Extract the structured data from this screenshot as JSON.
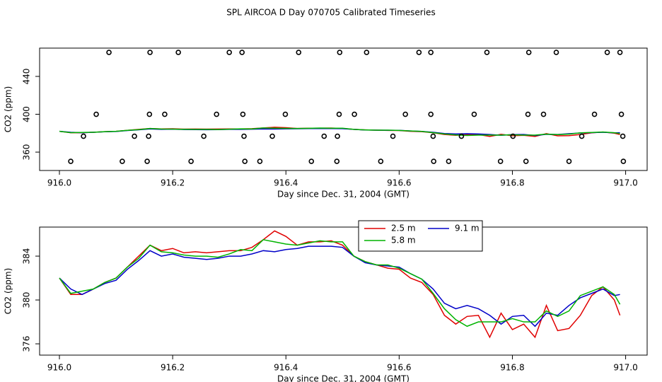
{
  "chart_data": [
    {
      "type": "line",
      "title": "SPL AIRCOA D  Day 070705  Calibrated Timeseries",
      "x_label": "Day since Dec. 31, 2004 (GMT)",
      "y_label": "CO2 (ppm)",
      "xlim": [
        915.965,
        917.038
      ],
      "ylim": [
        340.6,
        469.9
      ],
      "xticks": [
        {
          "value": 916,
          "label": "916.0"
        },
        916.2,
        916.4,
        916.6,
        916.8,
        {
          "value": 917,
          "label": "917.0"
        }
      ],
      "yticks": [
        360,
        400,
        440
      ],
      "x": [
        916,
        916.02,
        916.04,
        916.06,
        916.08,
        916.1,
        916.12,
        916.14,
        916.16,
        916.18,
        916.2,
        916.22,
        916.24,
        916.26,
        916.28,
        916.3,
        916.32,
        916.34,
        916.36,
        916.38,
        916.4,
        916.42,
        916.44,
        916.46,
        916.48,
        916.5,
        916.52,
        916.54,
        916.56,
        916.58,
        916.6,
        916.62,
        916.64,
        916.66,
        916.68,
        916.7,
        916.72,
        916.74,
        916.76,
        916.78,
        916.8,
        916.82,
        916.84,
        916.86,
        916.88,
        916.9,
        916.92,
        916.94,
        916.96,
        916.98,
        916.99
      ],
      "series": [
        {
          "color": "#e00000",
          "values": [
            382,
            380.5,
            380.5,
            381,
            381.6,
            382,
            383,
            384,
            385,
            384.5,
            384.7,
            384.3,
            384.4,
            384.3,
            384.4,
            384.5,
            384.5,
            384.8,
            385.5,
            386.3,
            385.8,
            385,
            385.3,
            385.3,
            385.4,
            385,
            384,
            383.5,
            383.2,
            382.9,
            382.8,
            382,
            381.6,
            380.5,
            378.6,
            377.8,
            378.5,
            378.6,
            376.6,
            378.8,
            377.3,
            377.8,
            376.6,
            379.5,
            377.2,
            377.4,
            378.6,
            380.4,
            381.2,
            380,
            378.6
          ]
        },
        {
          "color": "#0000c8",
          "values": [
            382,
            381,
            380.5,
            381,
            381.5,
            381.8,
            382.8,
            383.6,
            384.5,
            384,
            384.2,
            383.9,
            383.8,
            383.7,
            383.8,
            384,
            384,
            384.2,
            384.5,
            384.4,
            384.6,
            384.7,
            384.9,
            384.9,
            384.9,
            384.8,
            384,
            383.4,
            383.2,
            383.1,
            383,
            382.4,
            381.9,
            381,
            379.7,
            379.2,
            379.5,
            379.2,
            378.6,
            377.8,
            378.5,
            378.6,
            377.6,
            378.8,
            378.6,
            379.5,
            380.2,
            380.6,
            381,
            380.4,
            380.5
          ]
        },
        {
          "color": "#00b400",
          "values": [
            382,
            380.6,
            380.8,
            381,
            381.6,
            382,
            383,
            383.8,
            385,
            384.4,
            384.3,
            384.1,
            384,
            384,
            383.9,
            384.2,
            384.6,
            384.5,
            385.5,
            385.3,
            385.1,
            385,
            385.2,
            385.4,
            385.3,
            385.3,
            384,
            383.5,
            383.2,
            383.2,
            382.9,
            382.4,
            381.9,
            380.6,
            379.2,
            378.2,
            377.6,
            378,
            378,
            378,
            378.3,
            378,
            378,
            379,
            378.5,
            379,
            380.4,
            380.8,
            381.2,
            380.5,
            379.6
          ]
        },
        {
          "type": "scatter",
          "color": "#000000",
          "x": [
            916.0875,
            916.16,
            916.21,
            916.3,
            916.3225,
            916.4225,
            916.495,
            916.5425,
            916.635,
            916.656,
            916.755,
            916.829,
            916.8775,
            916.9675,
            916.99,
            916.065,
            916.159,
            916.186,
            916.2775,
            916.324,
            916.399,
            916.494,
            916.521,
            916.611,
            916.656,
            916.7325,
            916.8275,
            916.855,
            916.945,
            916.9925,
            916.0425,
            916.1325,
            916.1575,
            916.255,
            916.326,
            916.376,
            916.4675,
            916.491,
            916.589,
            916.66,
            916.71,
            916.801,
            916.9225,
            916.995,
            916.02,
            916.111,
            916.155,
            916.2325,
            916.3275,
            916.354,
            916.445,
            916.49,
            916.5675,
            916.661,
            916.6875,
            916.779,
            916.824,
            916.9,
            916.996
          ],
          "values": [
            465.4,
            465.4,
            465.4,
            465.4,
            465.4,
            465.4,
            465.4,
            465.4,
            465.4,
            465.4,
            465.4,
            465.4,
            465.4,
            465.4,
            465.4,
            400,
            400,
            400,
            400,
            400,
            400,
            400,
            400,
            400,
            400,
            400,
            400,
            400,
            400,
            400,
            376.8,
            376.8,
            376.8,
            376.8,
            376.8,
            376.8,
            376.8,
            376.8,
            376.8,
            376.8,
            376.8,
            376.8,
            376.8,
            376.8,
            350.3,
            350.3,
            350.3,
            350.3,
            350.3,
            350.3,
            350.3,
            350.3,
            350.3,
            350.3,
            350.3,
            350.3,
            350.3,
            350.3,
            350.3
          ]
        }
      ]
    },
    {
      "type": "line",
      "x_label": "Day since Dec. 31, 2004 (GMT)",
      "y_label": "CO2 (ppm)",
      "xlim": [
        915.965,
        917.038
      ],
      "ylim": [
        374.97,
        386.65
      ],
      "xticks": [
        {
          "value": 916,
          "label": "916.0"
        },
        916.2,
        916.4,
        916.6,
        916.8,
        {
          "value": 917,
          "label": "917.0"
        }
      ],
      "yticks": [
        376,
        380,
        384
      ],
      "legend": "top",
      "x": [
        916,
        916.02,
        916.04,
        916.06,
        916.08,
        916.1,
        916.12,
        916.14,
        916.16,
        916.18,
        916.2,
        916.22,
        916.24,
        916.26,
        916.28,
        916.3,
        916.32,
        916.34,
        916.36,
        916.38,
        916.4,
        916.42,
        916.44,
        916.46,
        916.48,
        916.5,
        916.52,
        916.54,
        916.56,
        916.58,
        916.6,
        916.62,
        916.64,
        916.66,
        916.68,
        916.7,
        916.72,
        916.74,
        916.76,
        916.78,
        916.8,
        916.82,
        916.84,
        916.86,
        916.88,
        916.9,
        916.92,
        916.94,
        916.96,
        916.98,
        916.99
      ],
      "series": [
        {
          "name": "2.5 m",
          "color": "#e00000",
          "values": [
            382,
            380.5,
            380.5,
            381,
            381.6,
            382,
            383,
            384,
            385,
            384.5,
            384.7,
            384.3,
            384.4,
            384.3,
            384.4,
            384.5,
            384.5,
            384.8,
            385.5,
            386.3,
            385.8,
            385,
            385.3,
            385.3,
            385.4,
            385,
            384,
            383.5,
            383.2,
            382.9,
            382.8,
            382,
            381.6,
            380.5,
            378.6,
            377.8,
            378.5,
            378.6,
            376.6,
            378.8,
            377.3,
            377.8,
            376.6,
            379.5,
            377.2,
            377.4,
            378.6,
            380.4,
            381.2,
            380,
            378.6
          ]
        },
        {
          "name": "9.1 m",
          "color": "#0000c8",
          "values": [
            382,
            381,
            380.5,
            381,
            381.5,
            381.8,
            382.8,
            383.6,
            384.5,
            384,
            384.2,
            383.9,
            383.8,
            383.7,
            383.8,
            384,
            384,
            384.2,
            384.5,
            384.4,
            384.6,
            384.7,
            384.9,
            384.9,
            384.9,
            384.8,
            384,
            383.4,
            383.2,
            383.1,
            383,
            382.4,
            381.9,
            381,
            379.7,
            379.2,
            379.5,
            379.2,
            378.6,
            377.8,
            378.5,
            378.6,
            377.6,
            378.8,
            378.6,
            379.5,
            380.2,
            380.6,
            381,
            380.4,
            380.5
          ]
        },
        {
          "name": "5.8 m",
          "color": "#00b400",
          "values": [
            382,
            380.6,
            380.8,
            381,
            381.6,
            382,
            383,
            383.8,
            385,
            384.4,
            384.3,
            384.1,
            384,
            384,
            383.9,
            384.2,
            384.6,
            384.5,
            385.5,
            385.3,
            385.1,
            385,
            385.2,
            385.4,
            385.3,
            385.3,
            384,
            383.5,
            383.2,
            383.2,
            382.9,
            382.4,
            381.9,
            380.6,
            379.2,
            378.2,
            377.6,
            378,
            378,
            378,
            378.3,
            378,
            378,
            379,
            378.5,
            379,
            380.4,
            380.8,
            381.2,
            380.5,
            379.6
          ]
        }
      ]
    }
  ]
}
